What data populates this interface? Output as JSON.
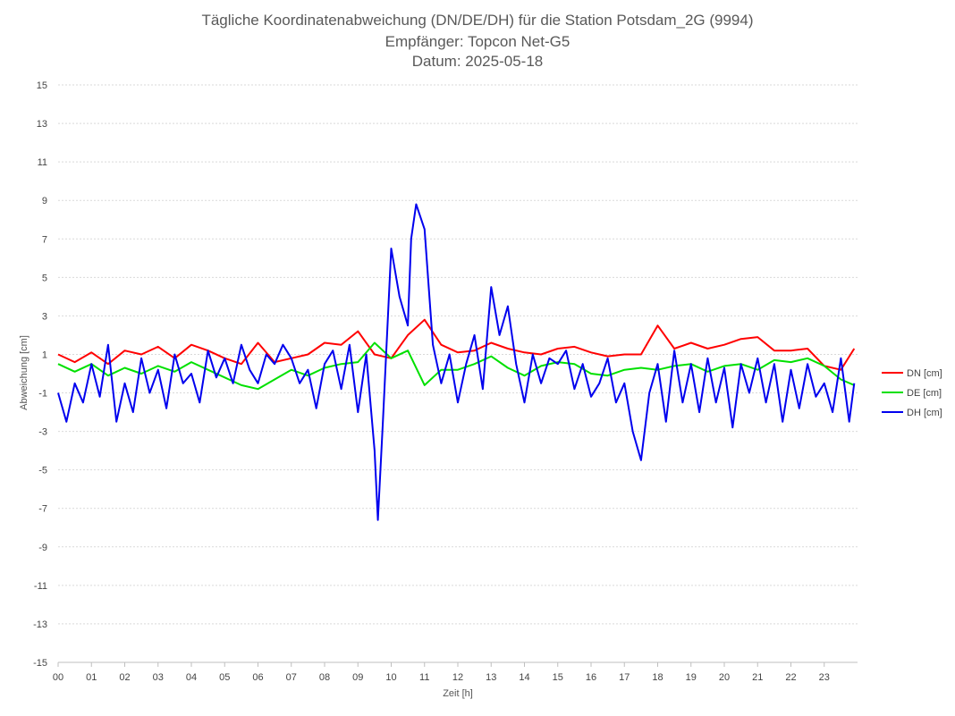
{
  "chart_data": {
    "type": "line",
    "title": [
      "Tägliche Koordinatenabweichung (DN/DE/DH) für die Station Potsdam_2G (9994)",
      "Empfänger: Topcon Net-G5",
      "Datum: 2025-05-18"
    ],
    "xlabel": "Zeit [h]",
    "ylabel": "Abweichung [cm]",
    "xlim": [
      0,
      24
    ],
    "ylim": [
      -15,
      15
    ],
    "xticks": [
      "00",
      "01",
      "02",
      "03",
      "04",
      "05",
      "06",
      "07",
      "08",
      "09",
      "10",
      "11",
      "12",
      "13",
      "14",
      "15",
      "16",
      "17",
      "18",
      "19",
      "20",
      "21",
      "22",
      "23"
    ],
    "yticks": [
      "15",
      "13",
      "11",
      "9",
      "7",
      "5",
      "3",
      "1",
      "-1",
      "-3",
      "-5",
      "-7",
      "-9",
      "-11",
      "-13",
      "-15"
    ],
    "grid": true,
    "legend_position": "right",
    "series": [
      {
        "name": "DN [cm]",
        "color": "#ff0000",
        "x": [
          0,
          0.5,
          1,
          1.5,
          2,
          2.5,
          3,
          3.5,
          4,
          4.5,
          5,
          5.5,
          6,
          6.5,
          7,
          7.5,
          8,
          8.5,
          9,
          9.5,
          10,
          10.5,
          11,
          11.5,
          12,
          12.5,
          13,
          13.5,
          14,
          14.5,
          15,
          15.5,
          16,
          16.5,
          17,
          17.5,
          18,
          18.5,
          19,
          19.5,
          20,
          20.5,
          21,
          21.5,
          22,
          22.5,
          23,
          23.5,
          23.9
        ],
        "values": [
          1.0,
          0.6,
          1.1,
          0.5,
          1.2,
          1.0,
          1.4,
          0.8,
          1.5,
          1.2,
          0.8,
          0.5,
          1.6,
          0.6,
          0.8,
          1.0,
          1.6,
          1.5,
          2.2,
          1.0,
          0.8,
          2.0,
          2.8,
          1.5,
          1.1,
          1.2,
          1.6,
          1.3,
          1.1,
          1.0,
          1.3,
          1.4,
          1.1,
          0.9,
          1.0,
          1.0,
          2.5,
          1.3,
          1.6,
          1.3,
          1.5,
          1.8,
          1.9,
          1.2,
          1.2,
          1.3,
          0.4,
          0.2,
          1.3
        ]
      },
      {
        "name": "DE [cm]",
        "color": "#00e000",
        "x": [
          0,
          0.5,
          1,
          1.5,
          2,
          2.5,
          3,
          3.5,
          4,
          4.5,
          5,
          5.5,
          6,
          6.5,
          7,
          7.5,
          8,
          8.5,
          9,
          9.5,
          10,
          10.5,
          11,
          11.5,
          12,
          12.5,
          13,
          13.5,
          14,
          14.5,
          15,
          15.5,
          16,
          16.5,
          17,
          17.5,
          18,
          18.5,
          19,
          19.5,
          20,
          20.5,
          21,
          21.5,
          22,
          22.5,
          23,
          23.5,
          23.9
        ],
        "values": [
          0.5,
          0.1,
          0.5,
          -0.1,
          0.3,
          0.0,
          0.4,
          0.1,
          0.6,
          0.2,
          -0.2,
          -0.6,
          -0.8,
          -0.3,
          0.2,
          -0.1,
          0.3,
          0.5,
          0.6,
          1.6,
          0.8,
          1.2,
          -0.6,
          0.2,
          0.2,
          0.5,
          0.9,
          0.3,
          -0.1,
          0.4,
          0.6,
          0.5,
          0.0,
          -0.1,
          0.2,
          0.3,
          0.2,
          0.4,
          0.5,
          0.1,
          0.4,
          0.5,
          0.2,
          0.7,
          0.6,
          0.8,
          0.4,
          -0.3,
          -0.6
        ]
      },
      {
        "name": "DH [cm]",
        "color": "#0000ee",
        "x": [
          0,
          0.25,
          0.5,
          0.75,
          1,
          1.25,
          1.5,
          1.75,
          2,
          2.25,
          2.5,
          2.75,
          3,
          3.25,
          3.5,
          3.75,
          4,
          4.25,
          4.5,
          4.75,
          5,
          5.25,
          5.5,
          5.75,
          6,
          6.25,
          6.5,
          6.75,
          7,
          7.25,
          7.5,
          7.75,
          8,
          8.25,
          8.5,
          8.75,
          9,
          9.25,
          9.5,
          9.6,
          9.75,
          10,
          10.25,
          10.5,
          10.6,
          10.75,
          11,
          11.25,
          11.5,
          11.75,
          12,
          12.25,
          12.5,
          12.75,
          13,
          13.25,
          13.5,
          13.75,
          14,
          14.25,
          14.5,
          14.75,
          15,
          15.25,
          15.5,
          15.75,
          16,
          16.25,
          16.5,
          16.75,
          17,
          17.25,
          17.5,
          17.75,
          18,
          18.25,
          18.5,
          18.75,
          19,
          19.25,
          19.5,
          19.75,
          20,
          20.25,
          20.5,
          20.75,
          21,
          21.25,
          21.5,
          21.75,
          22,
          22.25,
          22.5,
          22.75,
          23,
          23.25,
          23.5,
          23.75,
          23.9
        ],
        "values": [
          -1.0,
          -2.5,
          -0.5,
          -1.5,
          0.5,
          -1.2,
          1.5,
          -2.5,
          -0.5,
          -2.0,
          0.8,
          -1.0,
          0.2,
          -1.8,
          1.0,
          -0.5,
          0.0,
          -1.5,
          1.2,
          -0.2,
          0.8,
          -0.5,
          1.5,
          0.2,
          -0.5,
          1.0,
          0.5,
          1.5,
          0.8,
          -0.5,
          0.2,
          -1.8,
          0.5,
          1.2,
          -0.8,
          1.5,
          -2.0,
          1.0,
          -4.0,
          -7.6,
          -2.5,
          6.5,
          4.0,
          2.5,
          7.0,
          8.8,
          7.5,
          1.5,
          -0.5,
          1.0,
          -1.5,
          0.5,
          2.0,
          -0.8,
          4.5,
          2.0,
          3.5,
          0.5,
          -1.5,
          1.0,
          -0.5,
          0.8,
          0.5,
          1.2,
          -0.8,
          0.5,
          -1.2,
          -0.5,
          0.8,
          -1.5,
          -0.5,
          -3.0,
          -4.5,
          -1.0,
          0.5,
          -2.5,
          1.2,
          -1.5,
          0.5,
          -2.0,
          0.8,
          -1.5,
          0.3,
          -2.8,
          0.5,
          -1.0,
          0.8,
          -1.5,
          0.5,
          -2.5,
          0.2,
          -1.8,
          0.5,
          -1.2,
          -0.5,
          -2.0,
          0.8,
          -2.5,
          -0.5
        ]
      }
    ]
  }
}
